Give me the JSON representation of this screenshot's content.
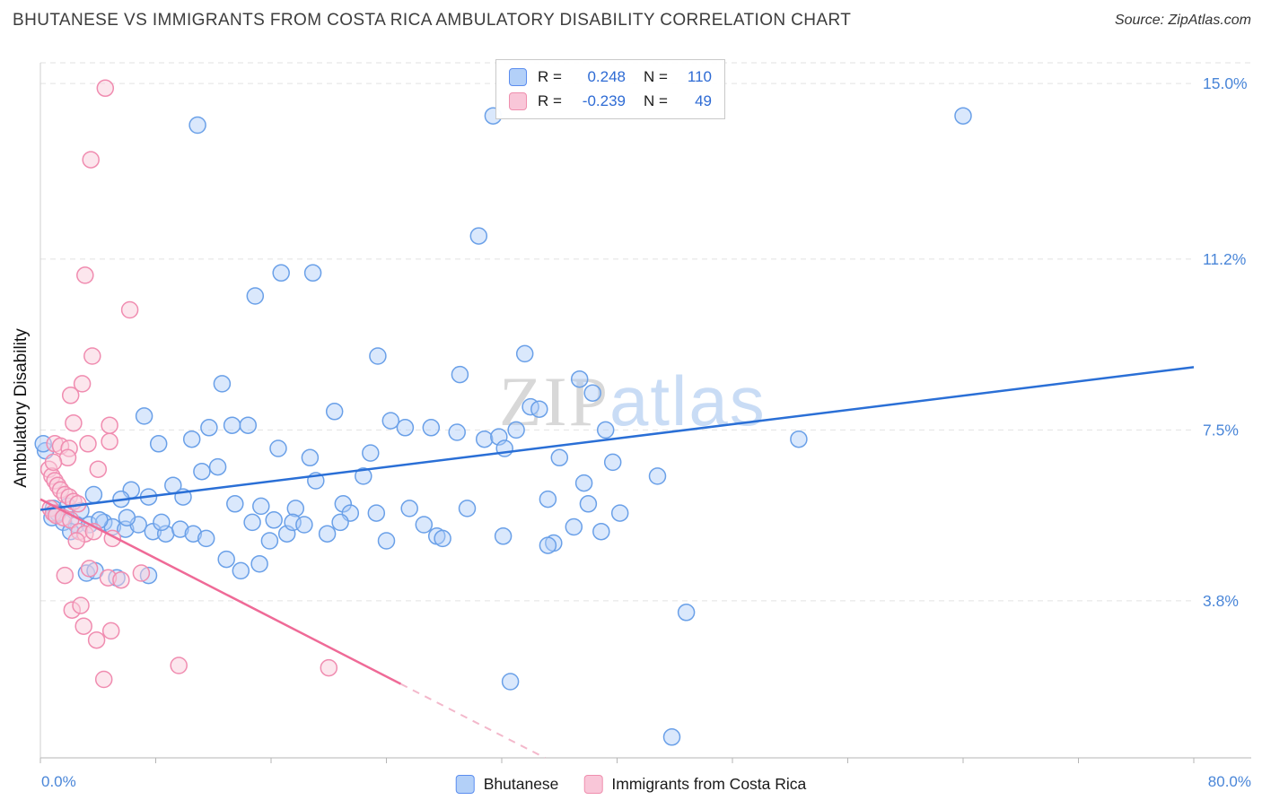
{
  "header": {
    "source": "Source: ZipAtlas.com"
  },
  "watermark": {
    "zip": "ZIP",
    "atlas": "atlas"
  },
  "correlation_legend": {
    "rows": [
      {
        "series": "Bhutanese",
        "r_label": "R =",
        "r_value": "0.248",
        "n_label": "N =",
        "n_value": "110"
      },
      {
        "series": "Immigrants from Costa Rica",
        "r_label": "R =",
        "r_value": "-0.239",
        "n_label": "N =",
        "n_value": "49"
      }
    ]
  },
  "legend": {
    "items": [
      {
        "label": "Bhutanese"
      },
      {
        "label": "Immigrants from Costa Rica"
      }
    ]
  },
  "axes": {
    "x_min_label": "0.0%",
    "x_max_label": "80.0%",
    "label_color": "#4a86d8"
  },
  "chart_data": {
    "type": "scatter",
    "title": "BHUTANESE VS IMMIGRANTS FROM COSTA RICA AMBULATORY DISABILITY CORRELATION CHART",
    "xlabel": "",
    "ylabel": "Ambulatory Disability",
    "xlim": [
      0,
      80
    ],
    "ylim_render": [
      0.4,
      15.45
    ],
    "x_ticks": [
      0,
      8,
      16,
      24,
      32,
      40,
      48,
      56,
      64,
      72,
      80
    ],
    "y_gridlines": [
      {
        "value": 3.8,
        "label": "3.8%"
      },
      {
        "value": 7.5,
        "label": "7.5%"
      },
      {
        "value": 11.2,
        "label": "11.2%"
      },
      {
        "value": 15.0,
        "label": "15.0%"
      }
    ],
    "grid": true,
    "legend_position": "bottom-center",
    "series": [
      {
        "name": "Bhutanese",
        "R": 0.248,
        "N": 110,
        "stroke": "#6aa0e8",
        "fill": "rgba(173,205,248,0.45)",
        "trend": {
          "x1": 0,
          "y1": 5.77,
          "x2": 80,
          "y2": 8.86,
          "color": "#2a6fd6"
        },
        "points": [
          [
            10.9,
            14.1
          ],
          [
            31.4,
            14.3
          ],
          [
            64.0,
            14.3
          ],
          [
            30.4,
            11.7
          ],
          [
            16.7,
            10.9
          ],
          [
            18.9,
            10.9
          ],
          [
            14.9,
            10.4
          ],
          [
            23.4,
            9.1
          ],
          [
            33.6,
            9.15
          ],
          [
            29.1,
            8.7
          ],
          [
            37.4,
            8.6
          ],
          [
            38.3,
            8.3
          ],
          [
            12.6,
            8.5
          ],
          [
            7.2,
            7.8
          ],
          [
            20.4,
            7.9
          ],
          [
            24.3,
            7.7
          ],
          [
            34.0,
            8.0
          ],
          [
            34.6,
            7.95
          ],
          [
            25.3,
            7.55
          ],
          [
            27.1,
            7.55
          ],
          [
            13.3,
            7.6
          ],
          [
            14.4,
            7.6
          ],
          [
            11.7,
            7.55
          ],
          [
            39.2,
            7.5
          ],
          [
            52.6,
            7.3
          ],
          [
            30.8,
            7.3
          ],
          [
            31.8,
            7.35
          ],
          [
            8.2,
            7.2
          ],
          [
            10.5,
            7.3
          ],
          [
            16.5,
            7.1
          ],
          [
            18.7,
            6.9
          ],
          [
            22.9,
            7.0
          ],
          [
            32.2,
            7.1
          ],
          [
            36.0,
            6.9
          ],
          [
            39.7,
            6.8
          ],
          [
            11.2,
            6.6
          ],
          [
            12.3,
            6.7
          ],
          [
            22.4,
            6.5
          ],
          [
            19.1,
            6.4
          ],
          [
            9.2,
            6.3
          ],
          [
            6.3,
            6.2
          ],
          [
            42.8,
            6.5
          ],
          [
            37.7,
            6.35
          ],
          [
            3.7,
            6.1
          ],
          [
            5.6,
            6.0
          ],
          [
            7.5,
            6.05
          ],
          [
            13.5,
            5.9
          ],
          [
            15.3,
            5.85
          ],
          [
            17.7,
            5.8
          ],
          [
            21.0,
            5.9
          ],
          [
            21.5,
            5.7
          ],
          [
            23.3,
            5.7
          ],
          [
            25.6,
            5.8
          ],
          [
            29.6,
            5.8
          ],
          [
            35.2,
            6.0
          ],
          [
            38.0,
            5.9
          ],
          [
            40.2,
            5.7
          ],
          [
            0.9,
            5.8
          ],
          [
            1.9,
            5.85
          ],
          [
            2.8,
            5.75
          ],
          [
            0.8,
            5.6
          ],
          [
            1.6,
            5.5
          ],
          [
            2.5,
            5.45
          ],
          [
            3.4,
            5.45
          ],
          [
            4.4,
            5.5
          ],
          [
            5.0,
            5.4
          ],
          [
            5.9,
            5.35
          ],
          [
            6.8,
            5.45
          ],
          [
            7.8,
            5.3
          ],
          [
            8.7,
            5.25
          ],
          [
            9.7,
            5.35
          ],
          [
            10.6,
            5.25
          ],
          [
            11.5,
            5.15
          ],
          [
            15.9,
            5.1
          ],
          [
            17.1,
            5.25
          ],
          [
            19.9,
            5.25
          ],
          [
            24.0,
            5.1
          ],
          [
            27.5,
            5.2
          ],
          [
            27.9,
            5.15
          ],
          [
            32.1,
            5.2
          ],
          [
            35.6,
            5.05
          ],
          [
            37.0,
            5.4
          ],
          [
            38.9,
            5.3
          ],
          [
            35.2,
            5.0
          ],
          [
            12.9,
            4.7
          ],
          [
            13.9,
            4.45
          ],
          [
            15.2,
            4.6
          ],
          [
            7.5,
            4.35
          ],
          [
            3.2,
            4.4
          ],
          [
            3.8,
            4.45
          ],
          [
            5.3,
            4.3
          ],
          [
            44.8,
            3.55
          ],
          [
            32.6,
            2.05
          ],
          [
            43.8,
            0.85
          ],
          [
            4.1,
            5.55
          ],
          [
            6.0,
            5.6
          ],
          [
            8.4,
            5.5
          ],
          [
            2.1,
            5.3
          ],
          [
            1.2,
            5.7
          ],
          [
            14.7,
            5.5
          ],
          [
            16.2,
            5.55
          ],
          [
            17.5,
            5.5
          ],
          [
            18.3,
            5.45
          ],
          [
            20.8,
            5.5
          ],
          [
            26.6,
            5.45
          ],
          [
            28.9,
            7.45
          ],
          [
            33.0,
            7.5
          ],
          [
            9.9,
            6.05
          ],
          [
            0.35,
            7.05
          ],
          [
            0.2,
            7.2
          ]
        ]
      },
      {
        "name": "Immigrants from Costa Rica",
        "R": -0.239,
        "N": 49,
        "stroke": "#f08cb0",
        "fill": "rgba(250,205,220,0.5)",
        "trend": {
          "x1": 0,
          "y1": 6.0,
          "x2": 25,
          "y2": 2.0,
          "color": "#ef6a97"
        },
        "trend_dash": {
          "x1": 25,
          "y1": 2.0,
          "x2": 35,
          "y2": 0.4,
          "color": "#f3b8cb"
        },
        "points": [
          [
            4.5,
            14.9
          ],
          [
            3.5,
            13.35
          ],
          [
            3.1,
            10.85
          ],
          [
            6.2,
            10.1
          ],
          [
            3.6,
            9.1
          ],
          [
            2.9,
            8.5
          ],
          [
            2.1,
            8.25
          ],
          [
            2.3,
            7.65
          ],
          [
            1.0,
            7.2
          ],
          [
            1.4,
            7.15
          ],
          [
            3.3,
            7.2
          ],
          [
            4.8,
            7.25
          ],
          [
            2.0,
            7.1
          ],
          [
            0.6,
            6.65
          ],
          [
            0.8,
            6.5
          ],
          [
            1.0,
            6.4
          ],
          [
            1.2,
            6.3
          ],
          [
            1.4,
            6.2
          ],
          [
            1.7,
            6.1
          ],
          [
            2.0,
            6.05
          ],
          [
            2.3,
            5.95
          ],
          [
            2.6,
            5.9
          ],
          [
            0.7,
            5.8
          ],
          [
            0.9,
            5.7
          ],
          [
            1.1,
            5.65
          ],
          [
            1.6,
            5.6
          ],
          [
            2.1,
            5.55
          ],
          [
            2.7,
            5.3
          ],
          [
            3.1,
            5.25
          ],
          [
            4.0,
            6.65
          ],
          [
            4.8,
            7.6
          ],
          [
            3.4,
            4.5
          ],
          [
            1.7,
            4.35
          ],
          [
            4.7,
            4.3
          ],
          [
            5.6,
            4.25
          ],
          [
            7.0,
            4.4
          ],
          [
            2.2,
            3.6
          ],
          [
            2.8,
            3.7
          ],
          [
            3.0,
            3.25
          ],
          [
            4.9,
            3.15
          ],
          [
            3.9,
            2.95
          ],
          [
            9.6,
            2.4
          ],
          [
            20.0,
            2.35
          ],
          [
            4.4,
            2.1
          ],
          [
            2.5,
            5.1
          ],
          [
            3.7,
            5.3
          ],
          [
            1.9,
            6.9
          ],
          [
            0.9,
            6.8
          ],
          [
            5.0,
            5.15
          ]
        ]
      }
    ]
  }
}
